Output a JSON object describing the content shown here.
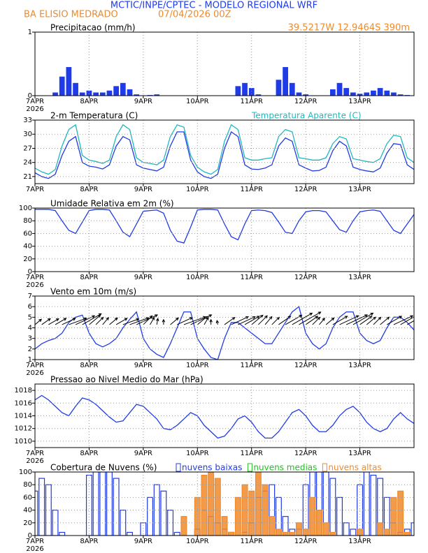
{
  "header": {
    "title": "MCTIC/INPE/CPTEC - MODELO REGIONAL WRF",
    "station": "BA ELISIO MEDRADO",
    "date": "07/04/2026 00Z",
    "location": "39.5217W 12.9464S 390m"
  },
  "chart_data": [
    {
      "type": "bar",
      "title": "Precipitacao (mm/h)",
      "year": "2026",
      "color": "#1f3be8",
      "xlim": [
        0,
        56
      ],
      "xticks": [
        {
          "value": 0,
          "label": "7APR"
        },
        {
          "value": 8,
          "label": "8APR"
        },
        {
          "value": 16,
          "label": "9APR"
        },
        {
          "value": 24,
          "label": "10APR"
        },
        {
          "value": 32,
          "label": "11APR"
        },
        {
          "value": 40,
          "label": "12APR"
        },
        {
          "value": 48,
          "label": "13APR"
        }
      ],
      "ylim": [
        0,
        1
      ],
      "yticks": [
        0,
        1
      ],
      "grid": true,
      "values": [
        0,
        0,
        0,
        0.05,
        0.3,
        0.45,
        0.2,
        0.05,
        0.08,
        0.05,
        0.05,
        0.08,
        0.15,
        0.2,
        0.1,
        0.02,
        0,
        0.01,
        0.02,
        0,
        0,
        0,
        0,
        0,
        0,
        0,
        0,
        0,
        0,
        0,
        0.15,
        0.2,
        0.12,
        0.02,
        0,
        0,
        0.25,
        0.45,
        0.2,
        0.05,
        0.02,
        0,
        0,
        0,
        0.1,
        0.2,
        0.12,
        0.05,
        0.03,
        0.05,
        0.08,
        0.12,
        0.08,
        0.05,
        0.02,
        0.01,
        0
      ]
    },
    {
      "type": "line",
      "title": "2-m Temperatura (C)",
      "xlim": [
        0,
        56
      ],
      "xticks": [
        {
          "value": 0,
          "label": "7APR"
        },
        {
          "value": 8,
          "label": "8APR"
        },
        {
          "value": 16,
          "label": "9APR"
        },
        {
          "value": 24,
          "label": "10APR"
        },
        {
          "value": 32,
          "label": "11APR"
        },
        {
          "value": 40,
          "label": "12APR"
        },
        {
          "value": 48,
          "label": "13APR"
        }
      ],
      "ylim": [
        19.5,
        33
      ],
      "yticks": [
        21,
        24,
        27,
        30,
        33
      ],
      "grid": true,
      "series": [
        {
          "color": "#1f3be8",
          "values": [
            21.8,
            21.0,
            20.6,
            21.5,
            25.5,
            28.5,
            29.5,
            24.0,
            23.2,
            23.0,
            22.6,
            23.5,
            27.5,
            29.5,
            28.8,
            23.5,
            22.8,
            22.5,
            22.2,
            23.0,
            27.5,
            30.5,
            30.5,
            24.5,
            22.0,
            21.0,
            20.6,
            21.5,
            27.0,
            30.5,
            29.5,
            23.5,
            22.6,
            22.5,
            22.8,
            23.5,
            27.5,
            29.2,
            28.5,
            23.5,
            22.8,
            22.2,
            22.3,
            23.0,
            26.5,
            28.5,
            27.5,
            23.0,
            22.5,
            22.2,
            22.0,
            22.8,
            26.0,
            28.0,
            27.8,
            23.5,
            22.5
          ]
        },
        {
          "name": "Temperatura Aparente (C)",
          "color": "#20b8c0",
          "values": [
            22.8,
            22.0,
            21.5,
            22.5,
            27.5,
            31.0,
            32.0,
            25.5,
            24.5,
            24.2,
            23.8,
            24.5,
            29.5,
            32.0,
            31.0,
            25.0,
            24.0,
            23.8,
            23.5,
            24.5,
            29.5,
            32.0,
            31.5,
            25.5,
            23.0,
            22.0,
            21.5,
            22.5,
            28.5,
            32.0,
            31.0,
            25.0,
            24.5,
            24.5,
            24.8,
            25.0,
            29.5,
            31.0,
            30.5,
            25.0,
            24.8,
            24.5,
            24.5,
            25.0,
            28.0,
            29.5,
            29.0,
            24.8,
            24.5,
            24.2,
            24.0,
            24.8,
            28.0,
            29.8,
            29.5,
            25.0,
            24.0
          ]
        }
      ]
    },
    {
      "type": "line",
      "title": "Umidade Relativa em 2m (%)",
      "year": "2026",
      "xlim": [
        0,
        56
      ],
      "xticks": [
        {
          "value": 0,
          "label": "7APR"
        },
        {
          "value": 8,
          "label": "8APR"
        },
        {
          "value": 16,
          "label": "9APR"
        },
        {
          "value": 24,
          "label": "10APR"
        },
        {
          "value": 32,
          "label": "11APR"
        },
        {
          "value": 40,
          "label": "12APR"
        },
        {
          "value": 48,
          "label": "13APR"
        }
      ],
      "ylim": [
        0,
        100
      ],
      "yticks": [
        0,
        20,
        40,
        60,
        80,
        100
      ],
      "grid": true,
      "series": [
        {
          "color": "#1f3be8",
          "values": [
            98,
            98,
            98,
            96,
            80,
            65,
            60,
            78,
            96,
            98,
            98,
            97,
            80,
            62,
            55,
            75,
            95,
            96,
            97,
            92,
            65,
            48,
            45,
            70,
            97,
            98,
            98,
            97,
            75,
            55,
            50,
            75,
            96,
            97,
            96,
            93,
            78,
            62,
            60,
            80,
            94,
            96,
            96,
            94,
            80,
            66,
            62,
            80,
            94,
            96,
            97,
            95,
            80,
            65,
            60,
            75,
            90
          ]
        }
      ]
    },
    {
      "type": "wind",
      "title": "Vento em 10m (m/s)",
      "year": "2026",
      "xlim": [
        0,
        56
      ],
      "xticks": [
        {
          "value": 0,
          "label": "7APR"
        },
        {
          "value": 8,
          "label": "8APR"
        },
        {
          "value": 16,
          "label": "9APR"
        },
        {
          "value": 24,
          "label": "10APR"
        },
        {
          "value": 32,
          "label": "11APR"
        },
        {
          "value": 40,
          "label": "12APR"
        },
        {
          "value": 48,
          "label": "13APR"
        }
      ],
      "ylim": [
        1,
        7
      ],
      "yticks": [
        1,
        2,
        3,
        4,
        5,
        6,
        7
      ],
      "grid": true,
      "series": [
        {
          "color": "#1f3be8",
          "values": [
            2.0,
            2.5,
            2.8,
            3.0,
            3.5,
            4.5,
            5.0,
            5.2,
            3.5,
            2.5,
            2.2,
            2.5,
            3.0,
            4.0,
            4.8,
            5.5,
            3.0,
            2.0,
            1.5,
            1.2,
            2.5,
            4.0,
            5.5,
            5.5,
            3.0,
            2.0,
            1.2,
            1.0,
            3.0,
            4.5,
            4.5,
            4.0,
            3.5,
            3.0,
            2.5,
            2.5,
            3.5,
            4.5,
            5.5,
            6.0,
            3.5,
            2.5,
            2.0,
            2.5,
            4.0,
            5.0,
            5.5,
            5.5,
            3.5,
            2.8,
            2.5,
            2.8,
            4.0,
            5.0,
            5.0,
            4.5,
            3.8
          ],
          "direction": [
            40,
            35,
            30,
            30,
            25,
            20,
            25,
            30,
            40,
            45,
            50,
            40,
            30,
            20,
            20,
            25,
            45,
            60,
            80,
            90,
            40,
            25,
            20,
            25,
            40,
            60,
            90,
            100,
            35,
            25,
            25,
            30,
            40,
            45,
            50,
            45,
            35,
            30,
            30,
            30,
            35,
            45,
            50,
            40,
            30,
            25,
            25,
            30,
            35,
            40,
            45,
            40,
            30,
            25,
            30,
            30,
            35
          ]
        }
      ]
    },
    {
      "type": "line",
      "title": "Pressao ao Nivel Medio do Mar (hPa)",
      "year": "2026",
      "xlim": [
        0,
        56
      ],
      "xticks": [
        {
          "value": 0,
          "label": "7APR"
        },
        {
          "value": 8,
          "label": "8APR"
        },
        {
          "value": 16,
          "label": "9APR"
        },
        {
          "value": 24,
          "label": "10APR"
        },
        {
          "value": 32,
          "label": "11APR"
        },
        {
          "value": 40,
          "label": "12APR"
        },
        {
          "value": 48,
          "label": "13APR"
        }
      ],
      "ylim": [
        1009,
        1019
      ],
      "yticks": [
        1010,
        1012,
        1014,
        1016,
        1018
      ],
      "grid": true,
      "series": [
        {
          "color": "#1f3be8",
          "values": [
            1016.5,
            1017.2,
            1016.5,
            1015.5,
            1014.5,
            1014.0,
            1015.5,
            1016.8,
            1016.5,
            1015.8,
            1014.8,
            1013.8,
            1013.0,
            1013.2,
            1014.5,
            1015.8,
            1015.5,
            1014.5,
            1013.5,
            1012.0,
            1011.8,
            1012.5,
            1013.5,
            1014.5,
            1014.0,
            1012.5,
            1011.5,
            1010.5,
            1010.8,
            1012.0,
            1013.5,
            1014.0,
            1013.0,
            1011.5,
            1010.5,
            1010.5,
            1011.5,
            1013.0,
            1014.5,
            1015.0,
            1014.0,
            1012.5,
            1011.5,
            1011.5,
            1012.5,
            1014.0,
            1015.0,
            1015.5,
            1014.5,
            1013.0,
            1012.0,
            1011.5,
            1012.0,
            1013.5,
            1014.5,
            1013.5,
            1012.8
          ]
        }
      ]
    },
    {
      "type": "bar",
      "title": "Cobertura de Nuvens (%)",
      "year": "2026",
      "xlim": [
        0,
        56
      ],
      "xticks": [
        {
          "value": 0,
          "label": "7APR"
        },
        {
          "value": 8,
          "label": "8APR"
        },
        {
          "value": 16,
          "label": "9APR"
        },
        {
          "value": 24,
          "label": "10APR"
        },
        {
          "value": 32,
          "label": "11APR"
        },
        {
          "value": 40,
          "label": "12APR"
        },
        {
          "value": 48,
          "label": "13APR"
        }
      ],
      "ylim": [
        0,
        100
      ],
      "yticks": [
        0,
        20,
        40,
        60,
        80,
        100
      ],
      "grid": true,
      "series": [
        {
          "name": "nuvens baixas",
          "color": "#1f3be8",
          "filled": false,
          "values": [
            70,
            90,
            80,
            40,
            5,
            0,
            0,
            0,
            95,
            100,
            100,
            100,
            90,
            40,
            5,
            0,
            20,
            60,
            80,
            70,
            40,
            5,
            0,
            0,
            10,
            40,
            30,
            20,
            10,
            5,
            0,
            5,
            20,
            60,
            70,
            80,
            60,
            30,
            10,
            10,
            80,
            100,
            100,
            100,
            90,
            60,
            20,
            10,
            80,
            100,
            95,
            90,
            60,
            20,
            5,
            10,
            20
          ]
        },
        {
          "name": "nuvens medias",
          "color": "#22c022",
          "filled": false,
          "values": [
            0,
            0,
            0,
            0,
            0,
            0,
            0,
            0,
            0,
            0,
            0,
            0,
            0,
            0,
            0,
            0,
            0,
            0,
            0,
            0,
            0,
            0,
            0,
            0,
            0,
            0,
            0,
            0,
            0,
            0,
            0,
            0,
            0,
            0,
            0,
            0,
            0,
            0,
            0,
            0,
            0,
            0,
            0,
            0,
            0,
            0,
            0,
            0,
            0,
            0,
            0,
            0,
            0,
            0,
            0,
            0,
            0
          ]
        },
        {
          "name": "nuvens altas",
          "color": "#f08a2a",
          "filled": true,
          "values": [
            0,
            0,
            0,
            0,
            0,
            0,
            0,
            0,
            0,
            0,
            0,
            0,
            0,
            0,
            0,
            0,
            0,
            0,
            0,
            0,
            0,
            0,
            30,
            0,
            60,
            95,
            100,
            90,
            30,
            5,
            60,
            80,
            70,
            100,
            80,
            30,
            10,
            5,
            5,
            20,
            10,
            60,
            40,
            20,
            5,
            0,
            0,
            0,
            10,
            0,
            0,
            20,
            10,
            60,
            70,
            5,
            0
          ]
        }
      ]
    }
  ]
}
